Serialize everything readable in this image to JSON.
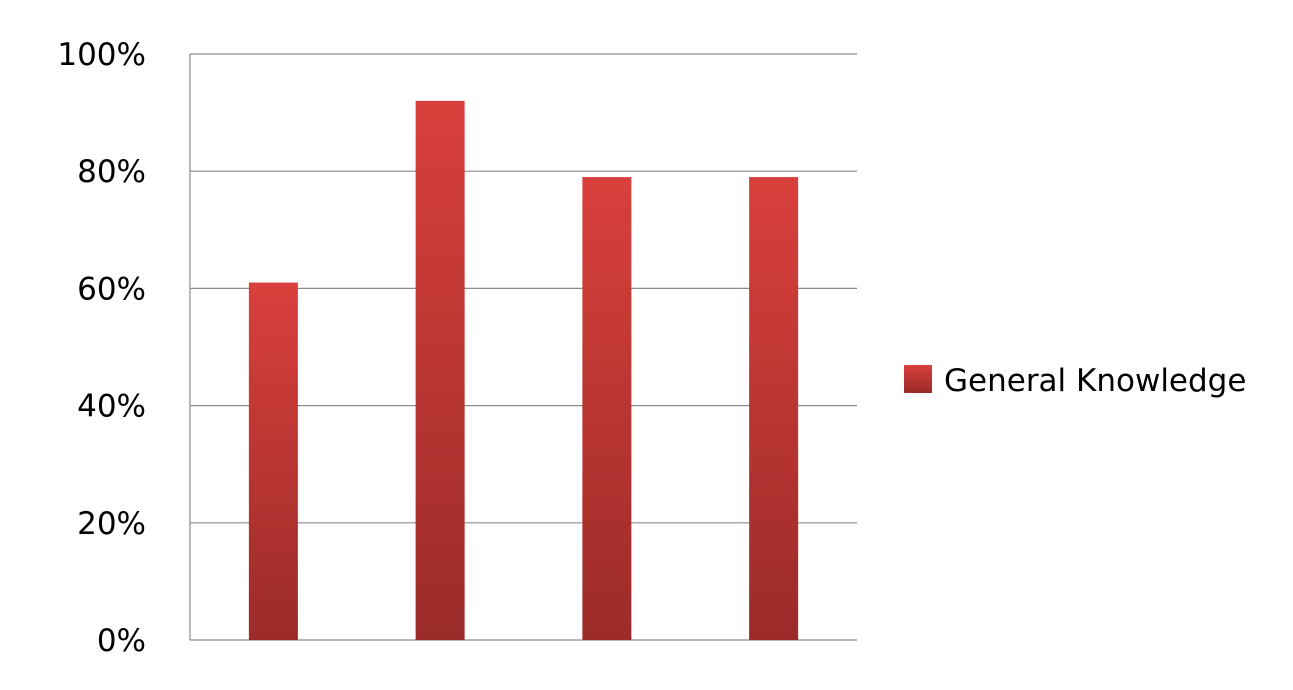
{
  "chart_data": {
    "type": "bar",
    "categories": [
      "",
      "",
      "",
      ""
    ],
    "series": [
      {
        "name": "General Knowledge",
        "values": [
          61,
          92,
          79,
          79
        ],
        "color": "#c0392b"
      }
    ],
    "ylim": [
      0,
      100
    ],
    "y_ticks": [
      "0%",
      "20%",
      "40%",
      "60%",
      "80%",
      "100%"
    ],
    "grid": true,
    "legend": {
      "position": "right",
      "label": "General Knowledge"
    },
    "title": "",
    "xlabel": "",
    "ylabel": ""
  },
  "colors": {
    "bar_top": "#d9403c",
    "bar_bottom": "#9b2b29",
    "grid": "#8c8c8c",
    "text": "#000000"
  }
}
